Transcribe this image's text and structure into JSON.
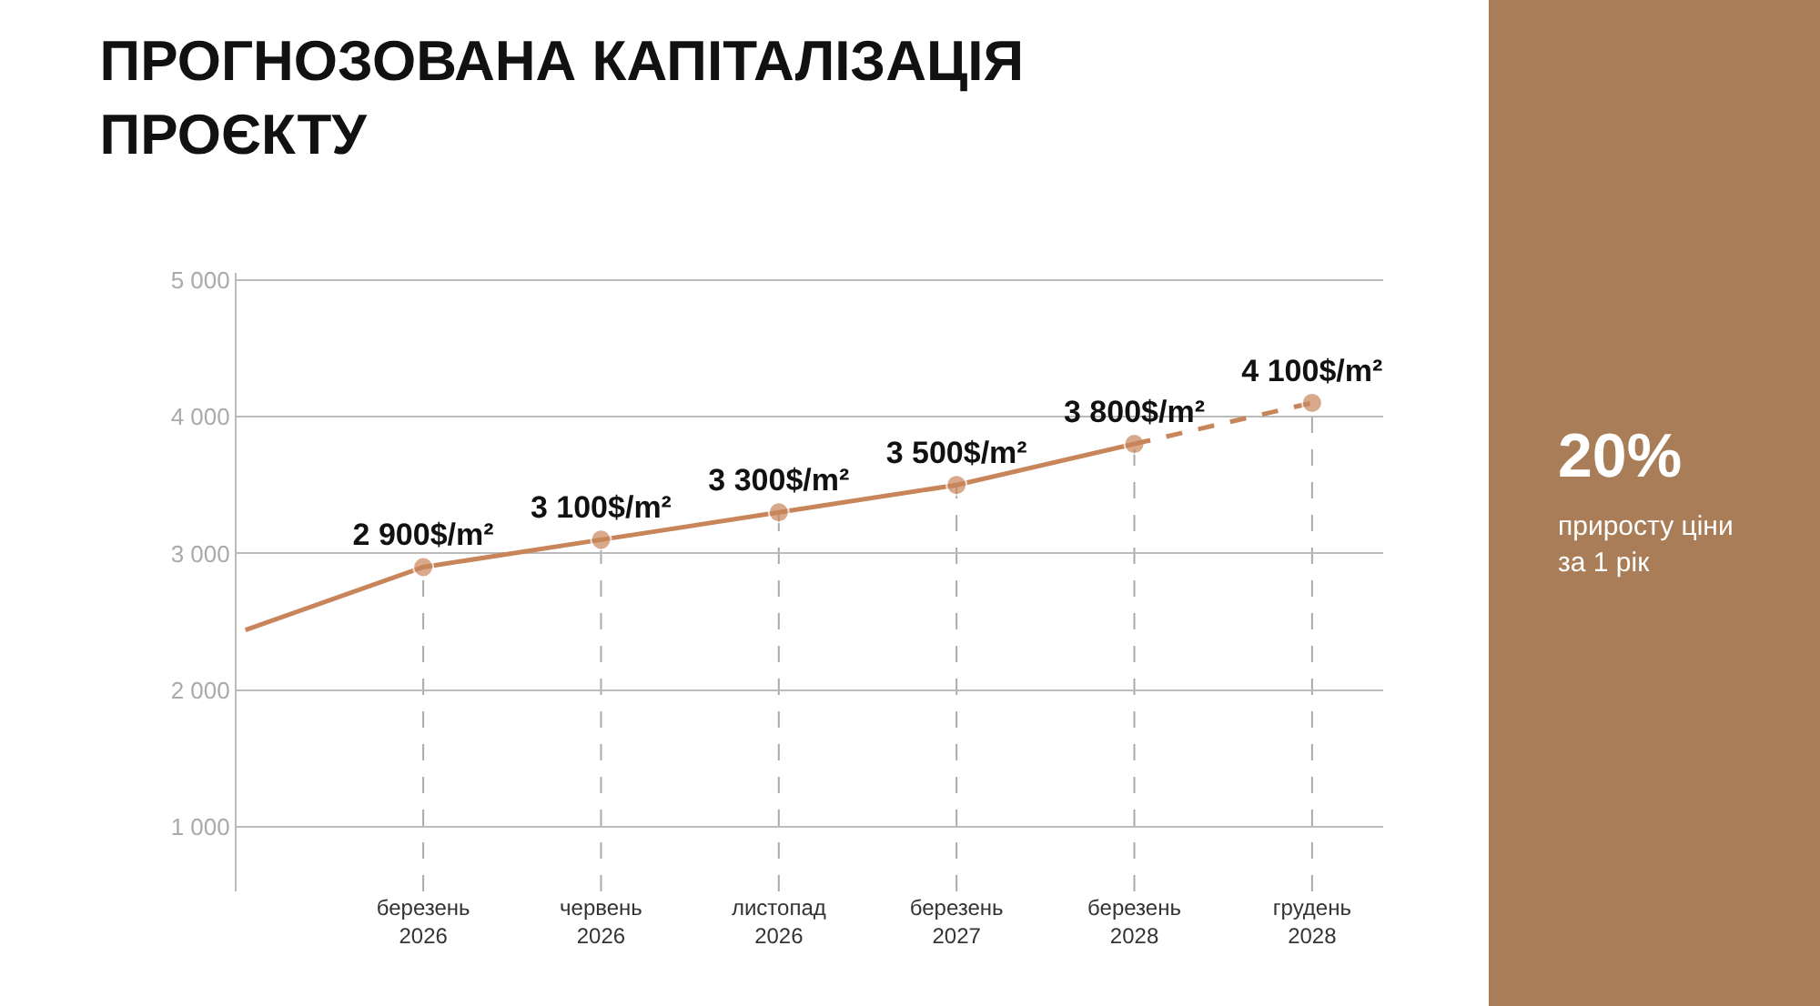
{
  "chart_data": {
    "type": "line",
    "title": "ПРОГНОЗОВАНА КАПІТАЛІЗАЦІЯ\nПРОЄКТУ",
    "categories": [
      null,
      "березень\n2026",
      "червень\n2026",
      "листопад\n2026",
      "березень\n2027",
      "березень\n2028",
      "грудень\n2028"
    ],
    "series": [
      {
        "color": "#c8855a",
        "line_style": "solid",
        "values": [
          2440,
          2900,
          3100,
          3300,
          3500,
          3800,
          null
        ],
        "value_labels": [
          null,
          "2 900$/m²",
          "3 100$/m²",
          "3 300$/m²",
          "3 500$/m²",
          "3 800$/m²",
          null
        ]
      },
      {
        "color": "#c8855a",
        "line_style": "dashed",
        "values": [
          null,
          null,
          null,
          null,
          null,
          3800,
          4100
        ],
        "value_labels": [
          null,
          null,
          null,
          null,
          null,
          null,
          "4 100$/m²"
        ]
      }
    ],
    "ylim": [
      530,
      5050
    ],
    "yticks": [
      {
        "value": 1000,
        "label": "1 000"
      },
      {
        "value": 2000,
        "label": "2 000"
      },
      {
        "value": 3000,
        "label": "3 000"
      },
      {
        "value": 4000,
        "label": "4 000"
      },
      {
        "value": 5000,
        "label": "5 000"
      }
    ],
    "grid": true,
    "marker": "circle",
    "annotations": [
      "20%",
      "приросту ціни\nза 1 рік"
    ]
  }
}
